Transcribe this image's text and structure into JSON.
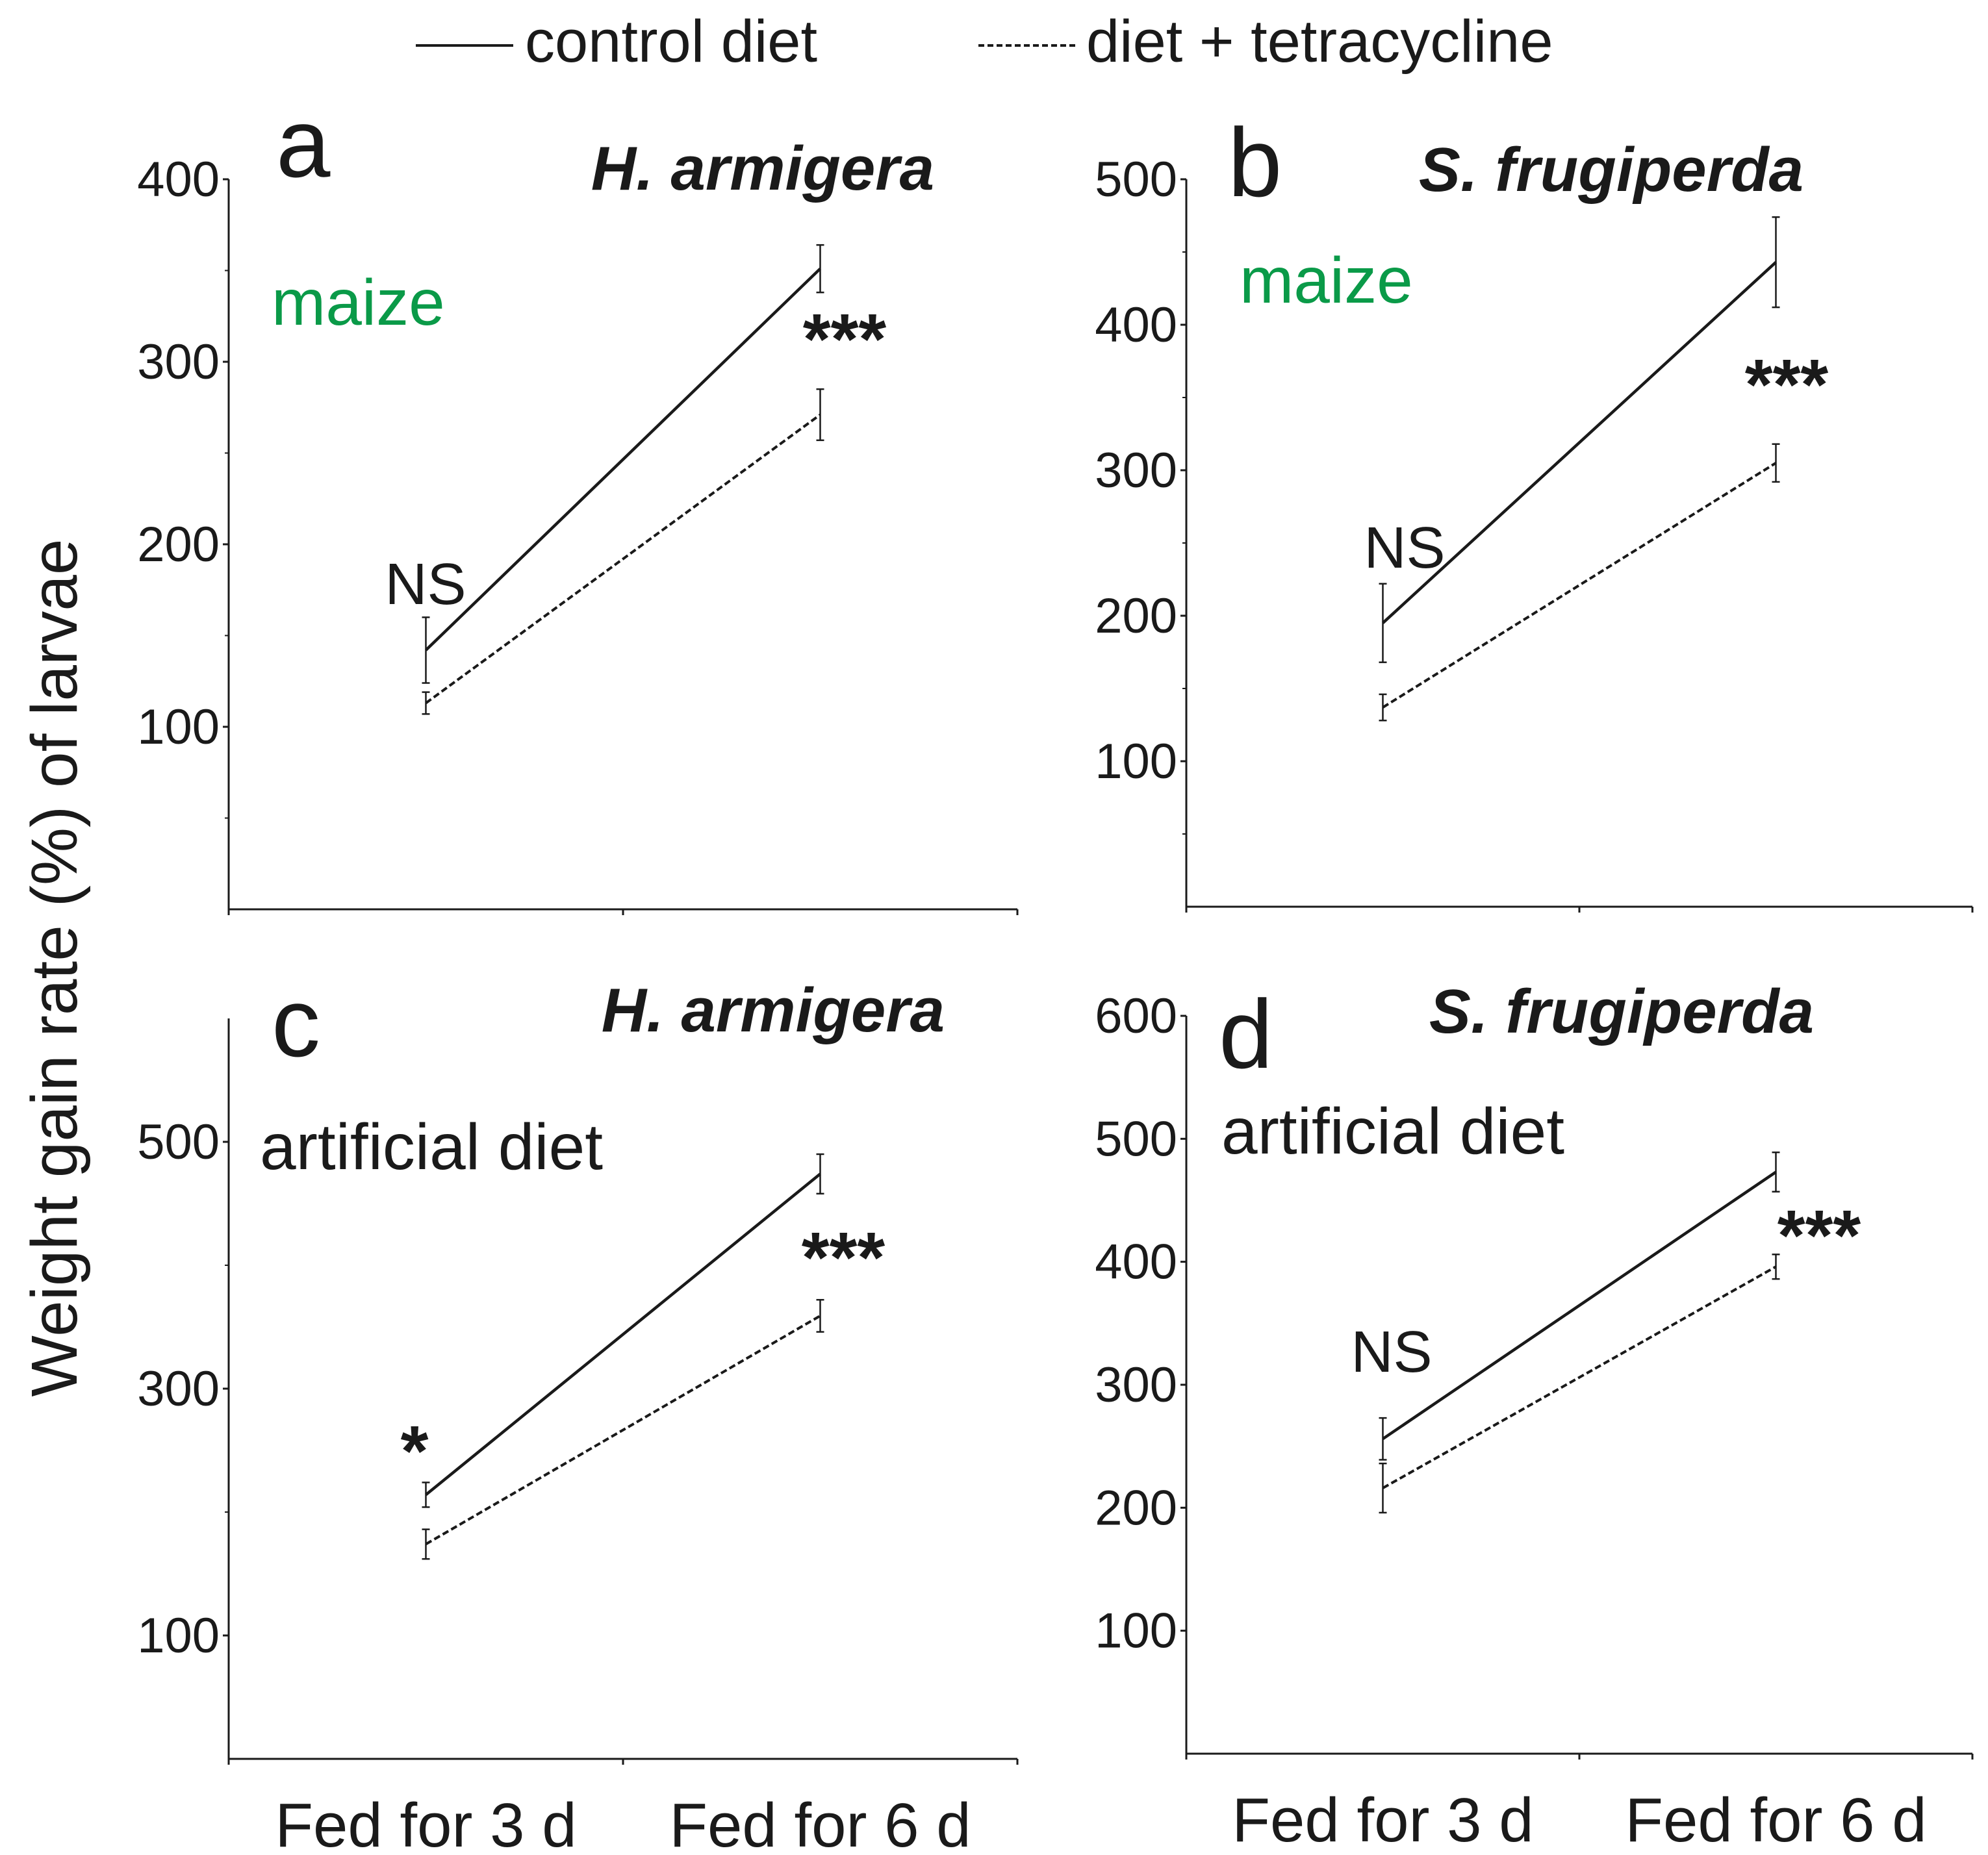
{
  "legend": {
    "entries": [
      {
        "label": "control diet",
        "style": "solid"
      },
      {
        "label": "diet + tetracycline",
        "style": "dashed"
      }
    ],
    "placement": "top-center"
  },
  "ylabel": "Weight gain rate (%) of larvae",
  "colors": {
    "ink": "#1a1a1a",
    "maize": "#0a9a48",
    "background": "#ffffff"
  },
  "chart_data": [
    {
      "panel": "a",
      "type": "line",
      "title": "H. armigera",
      "diet": "maize",
      "categories": [
        "Fed for 3 d",
        "Fed for 6 d"
      ],
      "ylim": [
        0,
        400
      ],
      "yticks": [
        100,
        200,
        300,
        400
      ],
      "yminor": [
        50,
        150,
        250,
        350
      ],
      "series": [
        {
          "name": "control diet",
          "values": [
            142,
            351
          ],
          "errors": [
            18,
            13
          ]
        },
        {
          "name": "diet + tetracycline",
          "values": [
            113,
            271
          ],
          "errors": [
            6,
            14
          ]
        }
      ],
      "annotations": [
        "NS",
        "***"
      ]
    },
    {
      "panel": "b",
      "type": "line",
      "title": "S. frugiperda",
      "diet": "maize",
      "categories": [
        "Fed for 3 d",
        "Fed for 6 d"
      ],
      "ylim": [
        0,
        500
      ],
      "yticks": [
        100,
        200,
        300,
        400,
        500
      ],
      "yminor": [
        50,
        150,
        250,
        350,
        450
      ],
      "series": [
        {
          "name": "control diet",
          "values": [
            195,
            443
          ],
          "errors": [
            27,
            31
          ]
        },
        {
          "name": "diet + tetracycline",
          "values": [
            137,
            305
          ],
          "errors": [
            9,
            13
          ]
        }
      ],
      "annotations": [
        "NS",
        "***"
      ]
    },
    {
      "panel": "c",
      "type": "line",
      "title": "H. armigera",
      "diet": "artificial diet",
      "categories": [
        "Fed for 3 d",
        "Fed for 6 d"
      ],
      "ylim": [
        0,
        600
      ],
      "yticks": [
        100,
        300,
        500
      ],
      "yminor": [
        200,
        400
      ],
      "series": [
        {
          "name": "control diet",
          "values": [
            214,
            474
          ],
          "errors": [
            10,
            16
          ]
        },
        {
          "name": "diet + tetracycline",
          "values": [
            174,
            359
          ],
          "errors": [
            12,
            13
          ]
        }
      ],
      "annotations": [
        "*",
        "***"
      ]
    },
    {
      "panel": "d",
      "type": "line",
      "title": "S. frugiperda",
      "diet": "artificial diet",
      "categories": [
        "Fed for 3 d",
        "Fed for 6 d"
      ],
      "ylim": [
        0,
        600
      ],
      "yticks": [
        100,
        200,
        300,
        400,
        500,
        600
      ],
      "yminor": [],
      "series": [
        {
          "name": "control diet",
          "values": [
            256,
            473
          ],
          "errors": [
            17,
            16
          ]
        },
        {
          "name": "diet + tetracycline",
          "values": [
            216,
            396
          ],
          "errors": [
            20,
            10
          ]
        }
      ],
      "annotations": [
        "NS",
        "***"
      ]
    }
  ]
}
